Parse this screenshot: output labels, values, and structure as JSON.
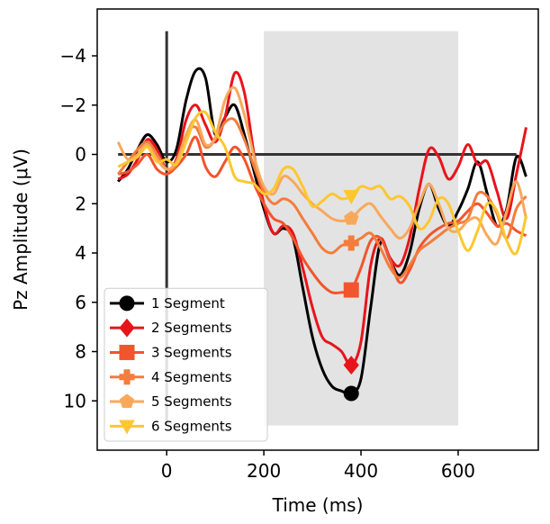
{
  "chart_data": {
    "type": "line",
    "x_label": "Time (ms)",
    "y_label": "Pz Amplitude (μV)",
    "xlim": [
      -143,
      765
    ],
    "ylim": [
      12.0,
      -5.9
    ],
    "xticks": [
      0,
      200,
      400,
      600
    ],
    "yticks": [
      {
        "value": -4,
        "label": "−4"
      },
      {
        "value": -2,
        "label": "−2"
      },
      0,
      2,
      4,
      6,
      8,
      10
    ],
    "shade": {
      "x": [
        200,
        600
      ],
      "y": [
        -5,
        11
      ],
      "color": "#e3e3e3"
    },
    "hline": {
      "y": 0,
      "x": [
        -100,
        720
      ]
    },
    "vline": {
      "x": 0,
      "y": [
        -5,
        11
      ]
    },
    "markers_at": 380,
    "legend": "lower left",
    "x": [
      -100,
      -80,
      -60,
      -40,
      -20,
      0,
      20,
      40,
      60,
      80,
      100,
      120,
      140,
      160,
      180,
      200,
      220,
      240,
      260,
      280,
      300,
      320,
      340,
      360,
      380,
      400,
      420,
      440,
      460,
      480,
      500,
      520,
      540,
      560,
      580,
      600,
      620,
      640,
      660,
      680,
      700,
      720,
      740
    ],
    "series": [
      {
        "name": "1 Segment",
        "color": "#000000",
        "marker": "circle",
        "values": [
          1.1,
          0.6,
          -0.2,
          -0.8,
          -0.4,
          0.3,
          -0.2,
          -2.2,
          -3.4,
          -3.1,
          -0.8,
          -1.5,
          -2.0,
          -0.8,
          0.7,
          2.2,
          3.2,
          3.0,
          3.4,
          5.4,
          7.4,
          8.7,
          9.4,
          9.6,
          9.7,
          9.1,
          6.2,
          3.6,
          4.3,
          4.9,
          4.0,
          2.2,
          1.2,
          2.2,
          2.9,
          2.3,
          1.4,
          0.3,
          1.6,
          2.9,
          2.2,
          0.1,
          0.9
        ]
      },
      {
        "name": "2 Segments",
        "color": "#e8141c",
        "marker": "diamond",
        "values": [
          1.0,
          0.8,
          0.2,
          -0.6,
          -0.2,
          0.6,
          0.2,
          -1.4,
          -2.0,
          -1.2,
          -0.5,
          -1.5,
          -3.3,
          -2.5,
          0.0,
          2.0,
          3.2,
          2.9,
          3.2,
          4.6,
          6.2,
          7.4,
          7.7,
          8.0,
          8.55,
          7.6,
          4.5,
          3.4,
          4.2,
          4.5,
          3.4,
          1.4,
          -0.2,
          0.1,
          1.0,
          0.5,
          -0.4,
          0.4,
          0.3,
          1.5,
          2.6,
          0.8,
          -1.1
        ]
      },
      {
        "name": "3 Segments",
        "color": "#f2542d",
        "marker": "square",
        "values": [
          0.8,
          0.7,
          0.4,
          0.0,
          0.6,
          0.8,
          0.5,
          0.0,
          -0.7,
          0.5,
          0.9,
          0.3,
          -0.3,
          0.2,
          1.2,
          2.0,
          2.6,
          2.8,
          3.4,
          4.2,
          4.8,
          5.3,
          5.6,
          5.6,
          5.5,
          4.6,
          3.5,
          3.4,
          4.3,
          5.2,
          4.7,
          3.8,
          3.3,
          3.0,
          2.8,
          2.7,
          2.3,
          2.0,
          2.4,
          2.9,
          2.8,
          3.1,
          3.3
        ]
      },
      {
        "name": "4 Segments",
        "color": "#f47c3c",
        "marker": "plus",
        "values": [
          0.8,
          0.3,
          -0.2,
          -0.5,
          0.0,
          0.6,
          0.4,
          -0.8,
          -1.1,
          -0.3,
          -0.6,
          -1.3,
          -1.4,
          -0.6,
          0.5,
          1.5,
          2.0,
          1.8,
          2.0,
          2.6,
          3.2,
          3.8,
          4.0,
          3.7,
          3.6,
          3.4,
          3.2,
          3.8,
          4.6,
          5.0,
          4.5,
          3.9,
          3.6,
          3.3,
          3.0,
          2.8,
          2.6,
          1.6,
          1.7,
          2.4,
          3.4,
          2.2,
          1.7
        ]
      },
      {
        "name": "5 Segments",
        "color": "#f9a85a",
        "marker": "pentagon",
        "values": [
          -0.5,
          0.2,
          0.0,
          -0.4,
          0.2,
          0.6,
          0.3,
          -0.8,
          -1.4,
          -0.4,
          -0.7,
          -2.2,
          -2.7,
          -1.6,
          0.1,
          1.3,
          1.6,
          0.9,
          1.1,
          1.6,
          2.0,
          2.3,
          2.6,
          2.7,
          2.6,
          2.2,
          2.0,
          2.5,
          3.0,
          3.4,
          3.0,
          2.0,
          1.2,
          2.0,
          3.0,
          3.1,
          2.7,
          2.6,
          3.3,
          3.6,
          2.3,
          1.1,
          2.6
        ]
      },
      {
        "name": "6 Segments",
        "color": "#fdc72f",
        "marker": "triangle-down",
        "values": [
          0.5,
          0.3,
          0.1,
          -0.3,
          0.3,
          0.2,
          0.4,
          -0.5,
          -1.5,
          -1.7,
          -0.9,
          -0.3,
          0.9,
          1.1,
          1.2,
          1.6,
          1.4,
          0.6,
          0.6,
          1.3,
          2.1,
          1.9,
          1.6,
          1.8,
          1.7,
          1.3,
          1.4,
          1.3,
          1.8,
          1.7,
          2.1,
          3.0,
          2.7,
          1.8,
          2.0,
          3.1,
          3.9,
          3.1,
          2.0,
          2.3,
          3.5,
          4.0,
          2.5
        ]
      }
    ]
  }
}
